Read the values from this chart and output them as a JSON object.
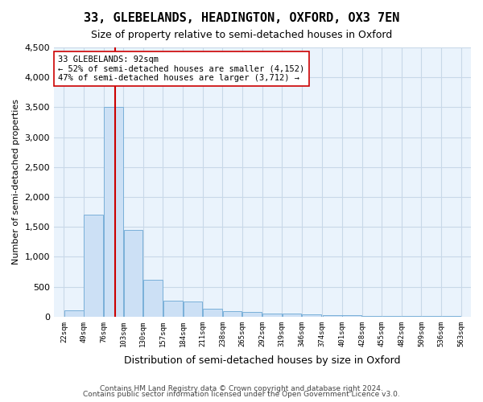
{
  "title": "33, GLEBELANDS, HEADINGTON, OXFORD, OX3 7EN",
  "subtitle": "Size of property relative to semi-detached houses in Oxford",
  "xlabel": "Distribution of semi-detached houses by size in Oxford",
  "ylabel": "Number of semi-detached properties",
  "annotation_title": "33 GLEBELANDS: 92sqm",
  "annotation_line1": "← 52% of semi-detached houses are smaller (4,152)",
  "annotation_line2": "47% of semi-detached houses are larger (3,712) →",
  "footer1": "Contains HM Land Registry data © Crown copyright and database right 2024.",
  "footer2": "Contains public sector information licensed under the Open Government Licence v3.0.",
  "property_size_sqm": 92,
  "bar_color": "#cce0f5",
  "bar_edge_color": "#7ab0d9",
  "vline_color": "#cc0000",
  "annotation_box_color": "#ffffff",
  "annotation_box_edge": "#cc0000",
  "grid_color": "#c8d8e8",
  "bg_color": "#eaf3fc",
  "ylim": [
    0,
    4500
  ],
  "bin_edges": [
    22,
    49,
    76,
    103,
    130,
    157,
    184,
    211,
    238,
    265,
    292,
    319,
    346,
    374,
    401,
    428,
    455,
    482,
    509,
    536,
    563
  ],
  "bar_heights": [
    100,
    1700,
    3500,
    1450,
    620,
    260,
    255,
    135,
    90,
    75,
    55,
    45,
    35,
    25,
    18,
    12,
    8,
    6,
    5,
    4
  ],
  "tick_labels": [
    "22sqm",
    "49sqm",
    "76sqm",
    "103sqm",
    "130sqm",
    "157sqm",
    "184sqm",
    "211sqm",
    "238sqm",
    "265sqm",
    "292sqm",
    "319sqm",
    "346sqm",
    "374sqm",
    "401sqm",
    "428sqm",
    "455sqm",
    "482sqm",
    "509sqm",
    "536sqm",
    "563sqm"
  ]
}
